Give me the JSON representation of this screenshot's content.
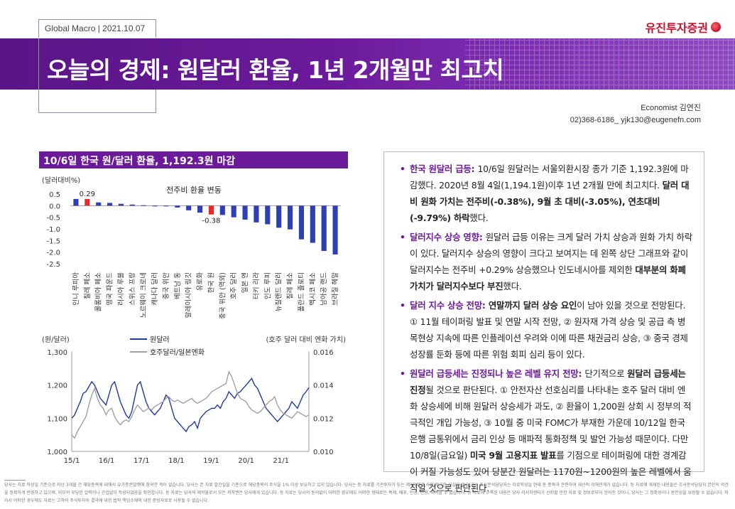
{
  "header": {
    "tagline": "Global Macro | 2021.10.07",
    "brand": "유진투자증권",
    "title": "오늘의 경제: 원달러 환율, 1년 2개월만 최고치",
    "economist": "Economist 김연진",
    "contact": "02)368-6186_ yjk130@eugenefn.com"
  },
  "chart_section": {
    "heading": "10/6일 한국 원/달러 환율, 1,192.3원 마감"
  },
  "chart_data": [
    {
      "type": "bar",
      "title": "전주비 환율 변동",
      "ylabel": "(달러대비%)",
      "ylim": [
        -2.5,
        0.5
      ],
      "yticks": [
        "0.5",
        "0.0",
        "-0.5",
        "-1.0",
        "-1.5",
        "-2.0",
        "-2.5"
      ],
      "categories": [
        "인니 루피아",
        "칠레 페소",
        "콜롬비아 페소",
        "영국 파운드",
        "러시아 루블",
        "스위스 프랑",
        "노르웨이 크로네",
        "캐나다 달러",
        "중국 위안",
        "베트남 동",
        "말레이시아 링깃",
        "유로화",
        "한국 원",
        "중국 위안 (역외)",
        "호주 달러",
        "일본 엔",
        "터키 리라",
        "인도 루피",
        "뉴질랜드 달러",
        "칠레 페소",
        "폴란드 즐로티",
        "멕시코 페소",
        "남아공 랜드",
        "브라질 헤알"
      ],
      "values": [
        0.29,
        0.29,
        0.14,
        0.12,
        0.08,
        0.05,
        0.02,
        0.0,
        -0.03,
        -0.08,
        -0.2,
        -0.3,
        -0.38,
        -0.4,
        -0.5,
        -0.6,
        -0.72,
        -0.8,
        -0.95,
        -1.02,
        -1.45,
        -1.6,
        -1.95,
        -2.1
      ],
      "highlight_color": "#e32b2b",
      "bar_color": "#2c3fb8",
      "highlight_indices": [
        1,
        12
      ],
      "annotations": [
        {
          "index": 1,
          "text": "0.29"
        },
        {
          "index": 12,
          "text": "-0.38"
        }
      ]
    },
    {
      "type": "line",
      "ylabel_left": "(원/달러)",
      "ylabel_right": "(호주 달러 대비 엔화 가치)",
      "ylim_left": [
        1000,
        1300
      ],
      "ylim_right": [
        0.01,
        0.016
      ],
      "yticks_left": [
        "1,300",
        "1,200",
        "1,100",
        "1,000"
      ],
      "yticks_right": [
        "0.016",
        "0.014",
        "0.012",
        "0.010"
      ],
      "xticks": [
        "15/1",
        "16/1",
        "17/1",
        "18/1",
        "19/1",
        "20/1",
        "21/1"
      ],
      "series": [
        {
          "name": "원달러",
          "color": "#1f3aa6",
          "axis": "left",
          "values": [
            1100,
            1110,
            1130,
            1150,
            1175,
            1180,
            1195,
            1210,
            1200,
            1180,
            1160,
            1150,
            1140,
            1170,
            1200,
            1210,
            1180,
            1150,
            1130,
            1110,
            1100,
            1120,
            1160,
            1200,
            1210,
            1180,
            1150,
            1130,
            1120,
            1110,
            1120,
            1130,
            1150,
            1170,
            1160,
            1130,
            1100,
            1090,
            1080,
            1070,
            1060,
            1075,
            1080,
            1090,
            1070,
            1100,
            1110,
            1120,
            1125,
            1130,
            1130,
            1140,
            1130,
            1150,
            1160,
            1180,
            1170,
            1160,
            1175,
            1180,
            1190,
            1200,
            1210,
            1220,
            1200,
            1190,
            1170,
            1150,
            1130,
            1120,
            1110,
            1100,
            1090,
            1100,
            1110,
            1120,
            1130,
            1150,
            1140,
            1130,
            1150,
            1170,
            1180,
            1192
          ]
        },
        {
          "name": "호주달러/일본엔화",
          "color": "#a0a0a0",
          "axis": "right",
          "values": [
            0.011,
            0.0108,
            0.0112,
            0.0115,
            0.0118,
            0.0121,
            0.0128,
            0.0134,
            0.0138,
            0.0132,
            0.0128,
            0.0126,
            0.0122,
            0.0125,
            0.0126,
            0.0121,
            0.0118,
            0.0116,
            0.0118,
            0.0119,
            0.0118,
            0.0121,
            0.0125,
            0.0128,
            0.0126,
            0.0124,
            0.0125,
            0.0126,
            0.0125,
            0.0127,
            0.0128,
            0.0129,
            0.013,
            0.0132,
            0.0133,
            0.0131,
            0.013,
            0.0131,
            0.013,
            0.0129,
            0.013,
            0.0131,
            0.0132,
            0.013,
            0.0129,
            0.013,
            0.0131,
            0.0132,
            0.0134,
            0.0136,
            0.0137,
            0.0138,
            0.0139,
            0.014,
            0.0141,
            0.0148,
            0.0145,
            0.014,
            0.0135,
            0.0132,
            0.0131,
            0.013,
            0.0127,
            0.0125,
            0.0124,
            0.0123,
            0.0124,
            0.0126,
            0.0128,
            0.013,
            0.0131,
            0.0133,
            0.0128,
            0.0125,
            0.0123,
            0.0122,
            0.0121,
            0.012,
            0.0122,
            0.0124,
            0.0123,
            0.0122,
            0.0121,
            0.0122
          ]
        }
      ]
    }
  ],
  "bullets": [
    {
      "parts": [
        {
          "t": "한국 원달러 급등: ",
          "c": "b-head"
        },
        {
          "t": "10/6일 원달러는 서울외환시장 종가 기준 1,192.3원에 마감했다. 2020년 8월 4일(1,194.1원)이후 1년 2개월 만에 최고치다. "
        },
        {
          "t": "달러 대비 원화 가치는 전주비(-0.38%), 9월 초 대비(-3.05%), 연초대비(-9.79%) 하락",
          "c": "bold"
        },
        {
          "t": "했다."
        }
      ]
    },
    {
      "parts": [
        {
          "t": "달러지수 상승 영향: ",
          "c": "b-head"
        },
        {
          "t": "원달러 급등 이유는 크게 달러 가치 상승과 원화 가치 하락이 있다. 달러지수 상승의 영향이 크다고 보여지는 데 왼쪽 상단 그래프와 같이 달러지수는 전주비 +0.29% 상승했으나 인도네시아를 제외한 "
        },
        {
          "t": "대부분의 화폐가치가 달러지수보다 부진",
          "c": "bold"
        },
        {
          "t": "했다."
        }
      ]
    },
    {
      "parts": [
        {
          "t": "달러 지수 상승 전망: ",
          "c": "b-head"
        },
        {
          "t": "연말까지 달러 상승 요인",
          "c": "bold"
        },
        {
          "t": "이 남아 있을 것으로 전망된다. ① 11월 테이퍼링 발표 및 연말 시작 전망, ② 원자재 가격 상승 및 공급 측 병목현상 지속에 따른 인플레이션 우려와 이에 따른 채권금리 상승, ③ 중국 경제성장률 둔화 등에 따른 위험 회피 심리 등이 있다."
        }
      ]
    },
    {
      "parts": [
        {
          "t": "원달러 급등세는 진정되나 높은 레벨 유지 전망: ",
          "c": "b-head"
        },
        {
          "t": "단기적으로 "
        },
        {
          "t": "원달러 급등세는 진정",
          "c": "bold"
        },
        {
          "t": "될 것으로 판단된다. ① 안전자산 선호심리를 나타내는 호주 달러 대비 엔화 상승세에 비해 원달러 상승세가 과도, ② 환율이 1,200원 상회 시 정부의 적극적인 개입 가능성, ③ 10월 중 미국 FOMC가 부재한 가운데 10/12일 한국은행 금통위에서 금리 인상 등 매파적 통화정책 및 발언 가능성 때문이다. 다만 10/8일(금요일) "
        },
        {
          "t": "미국 9월 고용지표 발표",
          "c": "bold"
        },
        {
          "t": "를 기점으로 테이퍼링에 대한 경계감이 커질 가능성도 있어 당분간 원달러는 1170원~1200원의 높은 레벨에서 움직일 것으로 판단된다."
        }
      ]
    }
  ],
  "disclaimer": "당사는 자료 작성일 기준으로 지난 3개월 간 해당종목에 대해서 유가증권발행에 참여한 적이 없습니다. 당사는 본 자료 발간일을 기준으로 해당종목의 주식을 1% 이상 보유하고 있지 않습니다. 당사는 동 자료를 기관투자가 또는 제3자에게 사전 제공한 사실이 없습니다. 조사분석담당자는 자료작성일 현재 동 종목과 관련하여 재산적 이해관계가 없습니다. 동 자료에 게재된 내용들은 조사분석담당자 본인의 의견을 정확하게 반영하고 있으며, 외부의 부당한 압력이나 간섭없이 작성되었음을 확인합니다. 동 자료는 당사의 제작물로서 모든 저작권은 당사에게 있습니다. 동 자료는 당사의 동의없이 어떠한 경우에도 어떠한 형태로든 복제, 배포, 전송, 변형, 대여할 수 없습니다. 동 자료에 수록된 내용은 당사 리서치센터가 신뢰할 만한 자료 및 정보로부터 얻어진 것이나, 당사는 그 정확성이나 완전성을 보장할 수 없습니다. 따라서 어떠한 경우에도 자료는 고객의 주식투자의 결과에 대한 법적 책임소재에 대한 증빙자료로 사용될 수 없습니다."
}
